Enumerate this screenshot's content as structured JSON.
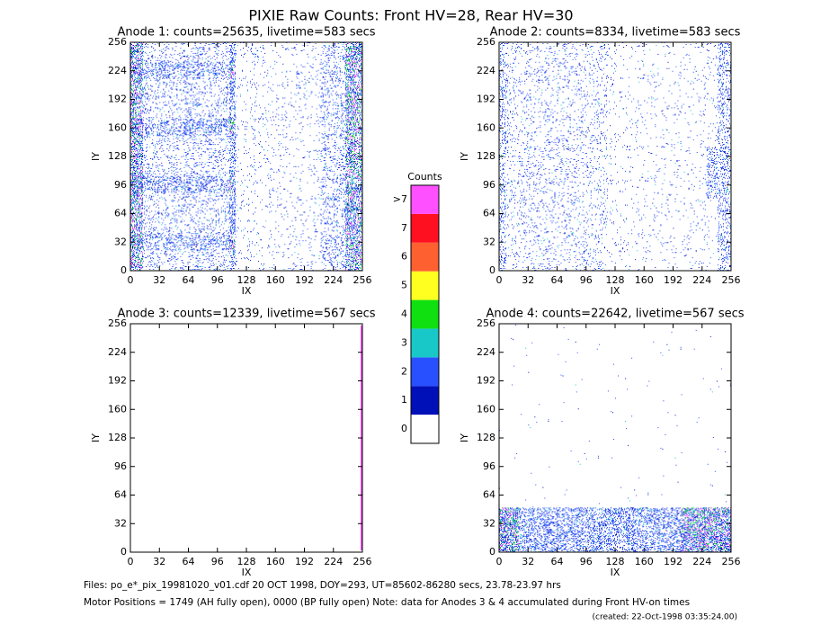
{
  "title": "PIXIE Raw Counts:  Front HV=28, Rear HV=30",
  "chart_data": [
    {
      "type": "heatmap",
      "title": "Anode 1: counts=25635, livetime=583 secs",
      "xlabel": "IX",
      "ylabel": "IY",
      "xlim": [
        0,
        256
      ],
      "ylim": [
        0,
        256
      ],
      "xticks": [
        0,
        32,
        64,
        96,
        128,
        160,
        192,
        224,
        256
      ],
      "yticks": [
        0,
        32,
        64,
        96,
        128,
        160,
        192,
        224,
        256
      ]
    },
    {
      "type": "heatmap",
      "title": "Anode 2: counts=8334, livetime=583 secs",
      "xlabel": "IX",
      "ylabel": "IY",
      "xlim": [
        0,
        256
      ],
      "ylim": [
        0,
        256
      ],
      "xticks": [
        0,
        32,
        64,
        96,
        128,
        160,
        192,
        224,
        256
      ],
      "yticks": [
        0,
        32,
        64,
        96,
        128,
        160,
        192,
        224,
        256
      ]
    },
    {
      "type": "heatmap",
      "title": "Anode 3: counts=12339, livetime=567 secs",
      "xlabel": "IX",
      "ylabel": "IY",
      "xlim": [
        0,
        256
      ],
      "ylim": [
        0,
        256
      ],
      "xticks": [
        0,
        32,
        64,
        96,
        128,
        160,
        192,
        224,
        256
      ],
      "yticks": [
        0,
        32,
        64,
        96,
        128,
        160,
        192,
        224,
        256
      ]
    },
    {
      "type": "heatmap",
      "title": "Anode 4: counts=22642, livetime=567 secs",
      "xlabel": "IX",
      "ylabel": "IY",
      "xlim": [
        0,
        256
      ],
      "ylim": [
        0,
        256
      ],
      "xticks": [
        0,
        32,
        64,
        96,
        128,
        160,
        192,
        224,
        256
      ],
      "yticks": [
        0,
        32,
        64,
        96,
        128,
        160,
        192,
        224,
        256
      ]
    }
  ],
  "colorbar": {
    "title": "Counts",
    "ticks": [
      0,
      1,
      2,
      3,
      4,
      5,
      6,
      7,
      {
        "value": 8,
        "label": ">7"
      }
    ],
    "colors": [
      "#ffffff",
      "#0010b8",
      "#2850ff",
      "#18c8c8",
      "#10e010",
      "#ffff20",
      "#ff6030",
      "#ff1020",
      "#ff50ff"
    ]
  },
  "footer": [
    "Files: po_e*_pix_19981020_v01.cdf    20 OCT 1998, DOY=293, UT=85602-86280 secs, 23.78-23.97 hrs",
    "Motor Positions = 1749 (AH fully open), 0000 (BP fully open)    Note: data for Anodes 3 & 4 accumulated during Front HV-on times",
    "(created: 22-Oct-1998 03:35:24.00)"
  ]
}
